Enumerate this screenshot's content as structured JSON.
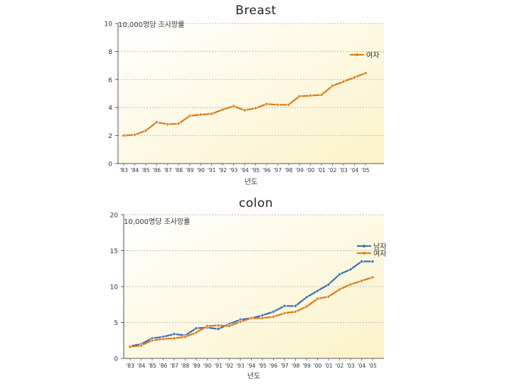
{
  "colors": {
    "male": "#3a6fb0",
    "female": "#e07a12",
    "grid": "#b9b9b9",
    "plot_bg_from": "#ffffff",
    "plot_bg_to": "#fbf3c8"
  },
  "chart_data": [
    {
      "type": "line",
      "title": "Breast",
      "ylabel": "10,000명당 조사망률",
      "xlabel": "년도",
      "categories": [
        "'83",
        "'84",
        "'85",
        "'86",
        "'87",
        "'88",
        "'89",
        "'90",
        "'91",
        "'92",
        "'93",
        "'94",
        "'95",
        "'96",
        "'97",
        "'98",
        "'99",
        "'00",
        "'01",
        "'02",
        "'03",
        "'04",
        "'05"
      ],
      "ylim": [
        0,
        10
      ],
      "yticks": [
        0,
        2,
        4,
        6,
        8,
        10
      ],
      "grid": true,
      "legend_position": "right",
      "series": [
        {
          "name": "여자",
          "color_key": "female",
          "values": [
            2.0,
            2.05,
            2.35,
            2.95,
            2.8,
            2.85,
            3.4,
            3.5,
            3.55,
            3.85,
            4.1,
            3.8,
            3.95,
            4.25,
            4.2,
            4.2,
            4.8,
            4.85,
            4.9,
            5.55,
            5.85,
            6.15,
            6.45
          ]
        }
      ]
    },
    {
      "type": "line",
      "title": "colon",
      "ylabel": "10,000명당 조사망률",
      "xlabel": "년도",
      "categories": [
        "'83",
        "'84",
        "'85",
        "'86",
        "'87",
        "'88",
        "'89",
        "'90",
        "'91",
        "'92",
        "'93",
        "'94",
        "'95",
        "'96",
        "'97",
        "'98",
        "'99",
        "'00",
        "'01",
        "'02",
        "'03",
        "'04",
        "'05"
      ],
      "ylim": [
        0,
        20
      ],
      "yticks": [
        0,
        5,
        10,
        15,
        20
      ],
      "grid": true,
      "legend_position": "right",
      "series": [
        {
          "name": "남자",
          "color_key": "male",
          "values": [
            1.7,
            2.0,
            2.8,
            3.0,
            3.4,
            3.2,
            4.2,
            4.3,
            4.1,
            4.8,
            5.4,
            5.6,
            6.0,
            6.5,
            7.3,
            7.3,
            8.5,
            9.4,
            10.3,
            11.7,
            12.4,
            13.5,
            13.5
          ]
        },
        {
          "name": "여자",
          "color_key": "female",
          "values": [
            1.6,
            1.8,
            2.5,
            2.7,
            2.8,
            3.0,
            3.6,
            4.5,
            4.6,
            4.5,
            5.1,
            5.6,
            5.6,
            5.8,
            6.3,
            6.5,
            7.2,
            8.3,
            8.6,
            9.6,
            10.3,
            10.8,
            11.3
          ]
        }
      ]
    }
  ]
}
